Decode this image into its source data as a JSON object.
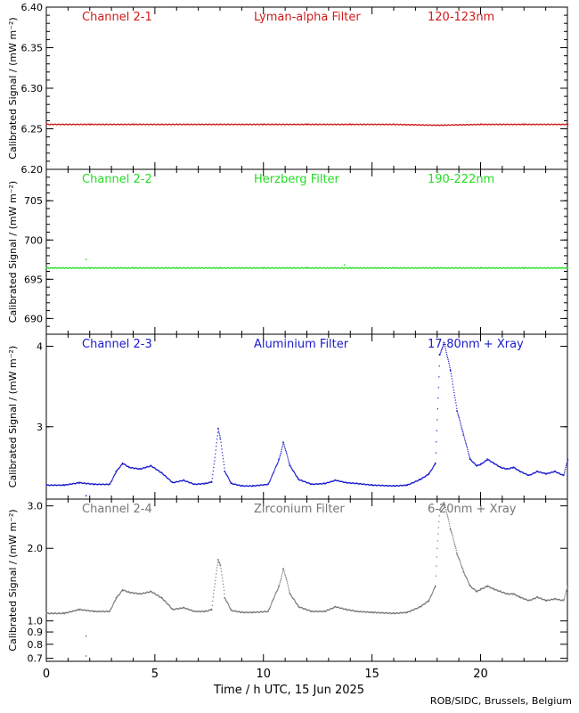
{
  "footer": {
    "credit": "ROB/SIDC, Brussels, Belgium"
  },
  "chart_data": {
    "type": "scatter",
    "xlabel": "Time / h UTC, 15 Jun 2025",
    "xlim": [
      0,
      24
    ],
    "x_ticks": [
      "0",
      "5",
      "10",
      "15",
      "20"
    ],
    "ylabel": "Calibrated Signal / (mW m⁻²)",
    "panels": [
      {
        "channel": "Channel 2-1",
        "filter": "Lyman-alpha Filter",
        "band": "120-123nm",
        "color": "#d11a1a",
        "scale": "linear",
        "ylim": [
          6.2,
          6.4
        ],
        "y_ticks": [
          "6.20",
          "6.25",
          "6.30",
          "6.35",
          "6.40"
        ],
        "x": [
          0,
          2,
          4,
          6,
          8,
          10,
          12,
          14,
          16,
          18,
          20,
          22,
          24
        ],
        "y": [
          6.256,
          6.256,
          6.256,
          6.256,
          6.256,
          6.256,
          6.256,
          6.256,
          6.256,
          6.255,
          6.256,
          6.256,
          6.256
        ],
        "outliers": []
      },
      {
        "channel": "Channel 2-2",
        "filter": "Herzberg Filter",
        "band": "190-222nm",
        "color": "#22dd22",
        "scale": "linear",
        "ylim": [
          688,
          709
        ],
        "y_ticks": [
          "690",
          "695",
          "700",
          "705"
        ],
        "x": [
          0,
          2,
          4,
          6,
          8,
          10,
          12,
          14,
          16,
          18,
          20,
          22,
          24
        ],
        "y": [
          696.5,
          696.5,
          696.5,
          696.5,
          696.5,
          696.5,
          696.5,
          696.5,
          696.5,
          696.5,
          696.5,
          696.5,
          696.5
        ],
        "outliers": [
          [
            1.8,
            697.6
          ],
          [
            13.7,
            696.9
          ]
        ]
      },
      {
        "channel": "Channel 2-3",
        "filter": "Aluminium Filter",
        "band": "17-80nm + Xray",
        "color": "#1a1acc",
        "scale": "linear",
        "ylim": [
          2.1,
          4.15
        ],
        "y_ticks": [
          "3",
          "4"
        ],
        "x": [
          0,
          0.8,
          1.5,
          2.2,
          2.9,
          3.2,
          3.5,
          3.8,
          4.3,
          4.8,
          5.3,
          5.8,
          6.3,
          6.8,
          7.3,
          7.6,
          7.9,
          8.0,
          8.2,
          8.5,
          9.0,
          9.5,
          10.2,
          10.7,
          10.9,
          11.2,
          11.6,
          12.2,
          12.8,
          13.3,
          13.8,
          14.3,
          15.0,
          16.0,
          16.6,
          17.2,
          17.6,
          17.9,
          18.1,
          18.3,
          18.6,
          18.9,
          19.2,
          19.5,
          19.8,
          20.0,
          20.3,
          20.6,
          20.9,
          21.2,
          21.5,
          21.8,
          22.2,
          22.6,
          23.0,
          23.4,
          23.8,
          24.0
        ],
        "y": [
          2.28,
          2.28,
          2.31,
          2.29,
          2.29,
          2.45,
          2.55,
          2.5,
          2.48,
          2.52,
          2.43,
          2.31,
          2.34,
          2.29,
          2.3,
          2.32,
          2.98,
          2.85,
          2.45,
          2.3,
          2.27,
          2.27,
          2.29,
          2.6,
          2.81,
          2.52,
          2.35,
          2.29,
          2.3,
          2.34,
          2.31,
          2.3,
          2.28,
          2.27,
          2.28,
          2.35,
          2.42,
          2.55,
          3.9,
          4.05,
          3.7,
          3.2,
          2.9,
          2.6,
          2.52,
          2.54,
          2.6,
          2.55,
          2.5,
          2.48,
          2.5,
          2.45,
          2.4,
          2.45,
          2.42,
          2.45,
          2.4,
          2.6
        ],
        "outliers": [
          [
            1.8,
            2.15
          ]
        ]
      },
      {
        "channel": "Channel 2-4",
        "filter": "Zirconium Filter",
        "band": "6-20nm + Xray",
        "color": "#777777",
        "scale": "log",
        "ylim": [
          0.68,
          3.2
        ],
        "y_ticks": [
          "0.7",
          "0.8",
          "0.9",
          "1.0",
          "2.0",
          "3.0"
        ],
        "x": [
          0,
          0.8,
          1.5,
          2.2,
          2.9,
          3.2,
          3.5,
          3.8,
          4.3,
          4.8,
          5.3,
          5.8,
          6.3,
          6.8,
          7.3,
          7.6,
          7.9,
          8.0,
          8.2,
          8.5,
          9.0,
          9.5,
          10.2,
          10.7,
          10.9,
          11.2,
          11.6,
          12.2,
          12.8,
          13.3,
          13.8,
          14.3,
          15.0,
          16.0,
          16.6,
          17.2,
          17.6,
          17.9,
          18.1,
          18.3,
          18.6,
          18.9,
          19.2,
          19.5,
          19.8,
          20.0,
          20.3,
          20.6,
          20.9,
          21.2,
          21.5,
          21.8,
          22.2,
          22.6,
          23.0,
          23.4,
          23.8,
          24.0
        ],
        "y": [
          1.08,
          1.08,
          1.12,
          1.1,
          1.1,
          1.25,
          1.35,
          1.32,
          1.3,
          1.33,
          1.25,
          1.12,
          1.14,
          1.1,
          1.1,
          1.12,
          1.8,
          1.7,
          1.25,
          1.11,
          1.09,
          1.09,
          1.1,
          1.4,
          1.65,
          1.3,
          1.15,
          1.1,
          1.1,
          1.15,
          1.12,
          1.1,
          1.09,
          1.08,
          1.09,
          1.15,
          1.22,
          1.4,
          2.9,
          3.1,
          2.4,
          1.9,
          1.6,
          1.4,
          1.33,
          1.36,
          1.4,
          1.36,
          1.33,
          1.3,
          1.3,
          1.26,
          1.22,
          1.26,
          1.22,
          1.24,
          1.22,
          1.4
        ],
        "outliers": [
          [
            1.8,
            0.87
          ],
          [
            1.8,
            0.72
          ]
        ]
      }
    ]
  }
}
